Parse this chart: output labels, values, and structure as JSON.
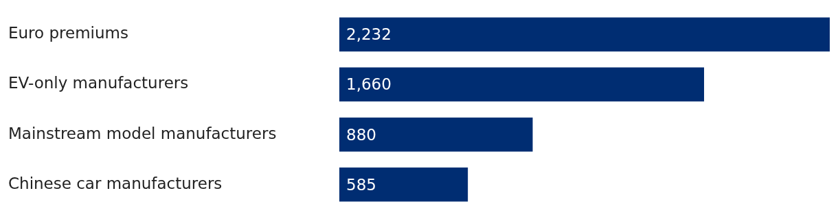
{
  "chart_data": {
    "type": "bar",
    "orientation": "horizontal",
    "categories": [
      "Euro premiums",
      "EV-only manufacturers",
      "Mainstream model manufacturers",
      "Chinese car manufacturers"
    ],
    "values": [
      2232,
      1660,
      880,
      585
    ],
    "value_labels": [
      "2,232",
      "1,660",
      "880",
      "585"
    ],
    "color": "#002d72",
    "legend": false
  }
}
